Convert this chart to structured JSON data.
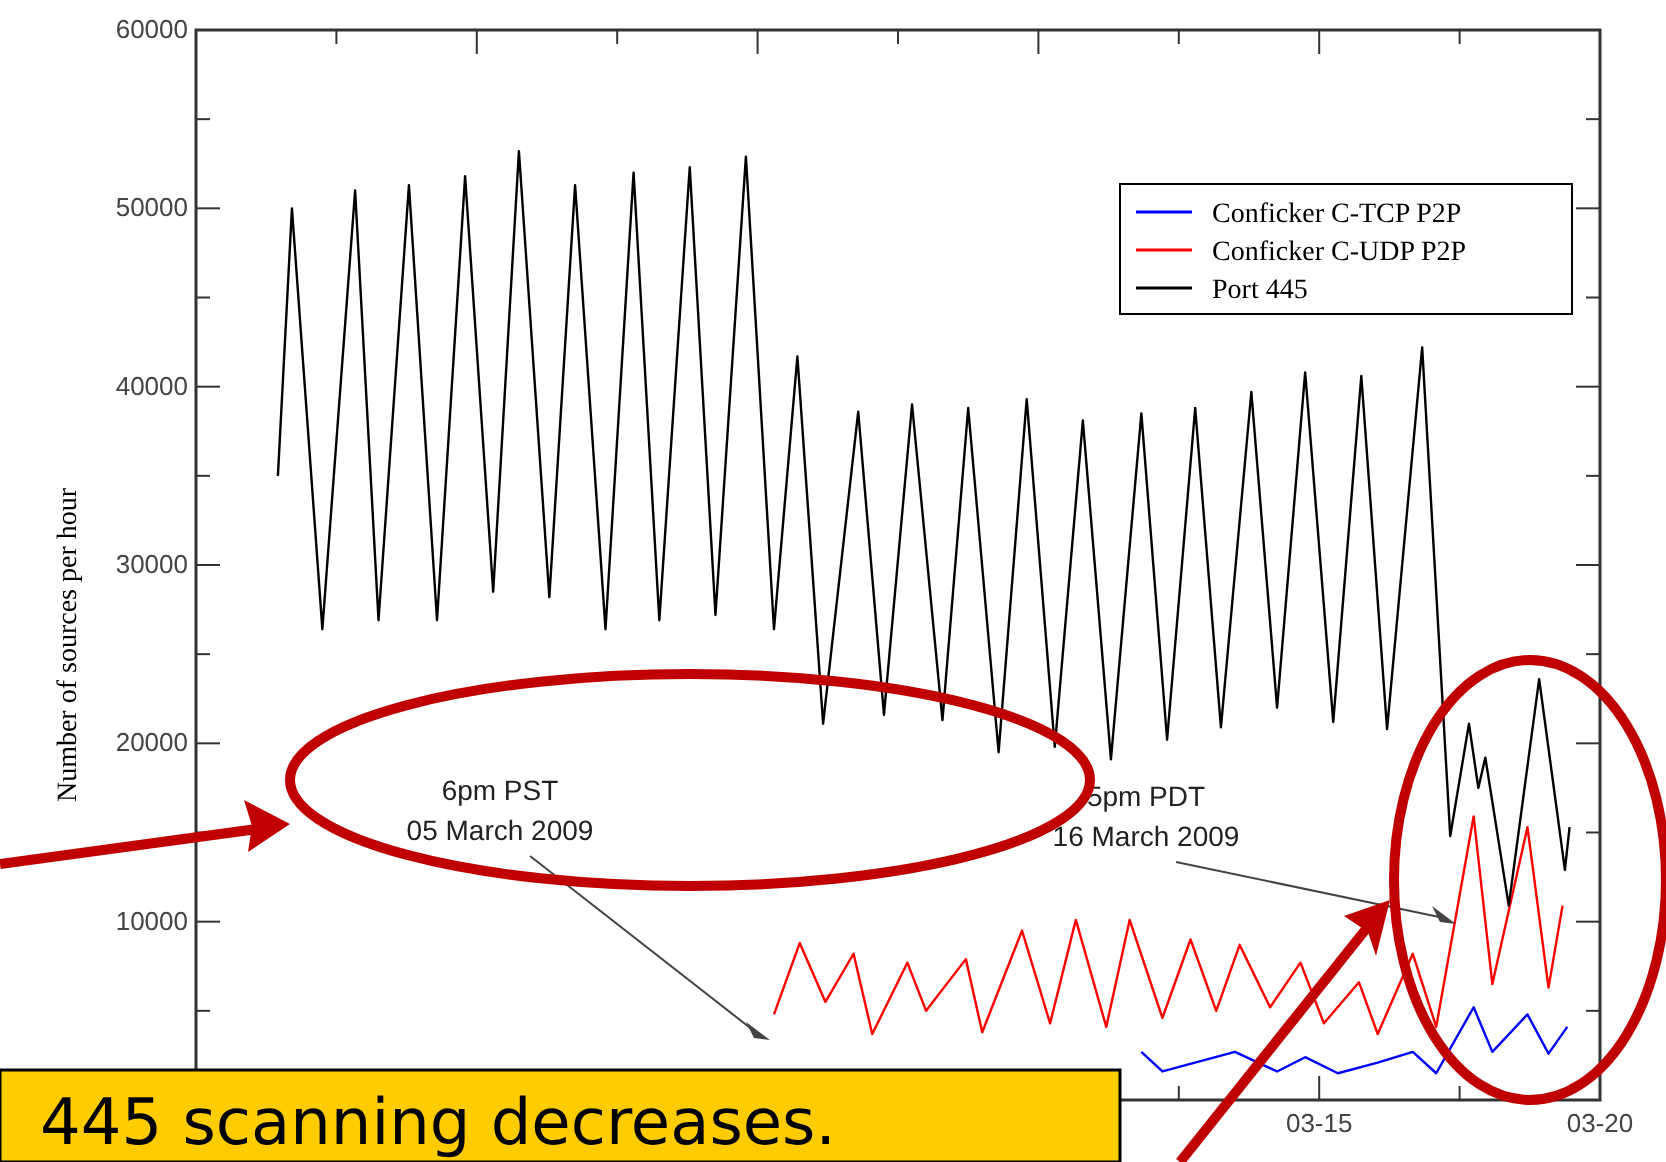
{
  "chart_data": {
    "type": "line",
    "ylabel": "Number of sources per hour",
    "xlim": [
      "2009-02-23",
      "2009-03-20"
    ],
    "xticks": [
      {
        "value": "2009-02-25T12:00",
        "label": null
      },
      {
        "value": "2009-02-28",
        "label": null
      },
      {
        "value": "2009-03-02T12:00",
        "label": null
      },
      {
        "value": "2009-03-05",
        "label": null
      },
      {
        "value": "2009-03-07T12:00",
        "label": null
      },
      {
        "value": "2009-03-10",
        "label": null
      },
      {
        "value": "2009-03-12T12:00",
        "label": null
      },
      {
        "value": "2009-03-15",
        "label": "03-15"
      },
      {
        "value": "2009-03-17T12:00",
        "label": null
      },
      {
        "value": "2009-03-20",
        "label": "03-20"
      }
    ],
    "ylim": [
      0,
      60000
    ],
    "yticks": [
      {
        "value": 0,
        "label": null
      },
      {
        "value": 5000,
        "label": null
      },
      10000,
      {
        "value": 15000,
        "label": null
      },
      20000,
      {
        "value": 25000,
        "label": null
      },
      30000,
      {
        "value": 35000,
        "label": null
      },
      40000,
      {
        "value": 45000,
        "label": null
      },
      50000,
      {
        "value": 55000,
        "label": null
      },
      60000
    ],
    "grid": false,
    "legend": "top right",
    "marker": "none",
    "line_style": "solid",
    "series": [
      {
        "name": "Conficker C-TCP P2P",
        "color": "#0000ff",
        "x": [
          "2009-03-11T20:00",
          "2009-03-12T05:00",
          "2009-03-13T12:00",
          "2009-03-14T06:00",
          "2009-03-14T18:00",
          "2009-03-15T08:00",
          "2009-03-16T01:00",
          "2009-03-16T16:00",
          "2009-03-17T02:00",
          "2009-03-17T18:00",
          "2009-03-18T02:00",
          "2009-03-18T17:00",
          "2009-03-19T02:00",
          "2009-03-19T10:00"
        ],
        "values": [
          2700,
          1600,
          2700,
          1600,
          2400,
          1500,
          2100,
          2700,
          1500,
          5200,
          2700,
          4800,
          2600,
          4100
        ]
      },
      {
        "name": "Conficker C-UDP P2P",
        "color": "#ff0000",
        "x": [
          "2009-03-05T07:00",
          "2009-03-05T18:00",
          "2009-03-06T05:00",
          "2009-03-06T17:00",
          "2009-03-07T01:00",
          "2009-03-07T16:00",
          "2009-03-08T00:00",
          "2009-03-08T17:00",
          "2009-03-09T00:00",
          "2009-03-09T17:00",
          "2009-03-10T05:00",
          "2009-03-10T16:00",
          "2009-03-11T05:00",
          "2009-03-11T15:00",
          "2009-03-12T05:00",
          "2009-03-12T17:00",
          "2009-03-13T04:00",
          "2009-03-13T14:00",
          "2009-03-14T03:00",
          "2009-03-14T16:00",
          "2009-03-15T02:00",
          "2009-03-15T17:00",
          "2009-03-16T01:00",
          "2009-03-16T16:00",
          "2009-03-17T02:00",
          "2009-03-17T18:00",
          "2009-03-18T02:00",
          "2009-03-18T17:00",
          "2009-03-19T02:00",
          "2009-03-19T08:00"
        ],
        "values": [
          4800,
          8800,
          5500,
          8200,
          3700,
          7700,
          5000,
          7900,
          3800,
          9500,
          4300,
          10100,
          4100,
          10100,
          4600,
          9000,
          5000,
          8700,
          5200,
          7700,
          4300,
          6600,
          3700,
          8200,
          4100,
          15900,
          6500,
          15300,
          6300,
          10900
        ]
      },
      {
        "name": "Port 445",
        "color": "#000000",
        "x": [
          "2009-02-24T11:00",
          "2009-02-24T17:00",
          "2009-02-25T06:00",
          "2009-02-25T20:00",
          "2009-02-26T06:00",
          "2009-02-26T19:00",
          "2009-02-27T07:00",
          "2009-02-27T19:00",
          "2009-02-28T07:00",
          "2009-02-28T18:00",
          "2009-03-01T07:00",
          "2009-03-01T18:00",
          "2009-03-02T07:00",
          "2009-03-02T19:00",
          "2009-03-03T06:00",
          "2009-03-03T19:00",
          "2009-03-04T06:00",
          "2009-03-04T19:00",
          "2009-03-05T07:00",
          "2009-03-05T17:00",
          "2009-03-06T04:00",
          "2009-03-06T19:00",
          "2009-03-07T06:00",
          "2009-03-07T18:00",
          "2009-03-08T07:00",
          "2009-03-08T18:00",
          "2009-03-09T07:00",
          "2009-03-09T19:00",
          "2009-03-10T07:00",
          "2009-03-10T19:00",
          "2009-03-11T07:00",
          "2009-03-11T20:00",
          "2009-03-12T07:00",
          "2009-03-12T19:00",
          "2009-03-13T06:00",
          "2009-03-13T19:00",
          "2009-03-14T06:00",
          "2009-03-14T18:00",
          "2009-03-15T06:00",
          "2009-03-15T18:00",
          "2009-03-16T05:00",
          "2009-03-16T20:00",
          "2009-03-17T08:00",
          "2009-03-17T16:00",
          "2009-03-17T20:00",
          "2009-03-17T23:00",
          "2009-03-18T09:00",
          "2009-03-18T22:00",
          "2009-03-19T09:00",
          "2009-03-19T11:00"
        ],
        "values": [
          35000,
          50000,
          26400,
          51000,
          26900,
          51300,
          26900,
          51800,
          28500,
          53200,
          28200,
          51300,
          26400,
          52000,
          26900,
          52300,
          27200,
          52900,
          26400,
          41700,
          21100,
          38600,
          21600,
          39000,
          21300,
          38800,
          19500,
          39300,
          19800,
          38100,
          19100,
          38500,
          20200,
          38800,
          20900,
          39700,
          22000,
          40800,
          21200,
          40600,
          20800,
          42200,
          14800,
          21100,
          17500,
          19200,
          10900,
          23600,
          12900,
          15300
        ]
      }
    ],
    "annotations": [
      "6pm PST\n05 March 2009",
      "5pm PDT\n16 March 2009",
      "445 scanning decreases."
    ]
  }
}
